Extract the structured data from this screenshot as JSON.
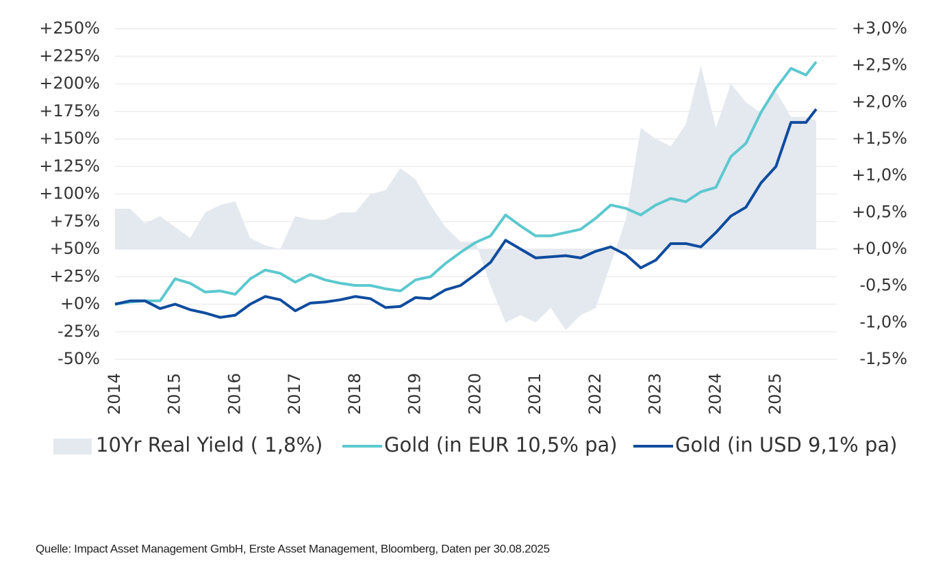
{
  "chart_data": {
    "type": "line",
    "x": [
      2014,
      2014.25,
      2014.5,
      2014.75,
      2015,
      2015.25,
      2015.5,
      2015.75,
      2016,
      2016.25,
      2016.5,
      2016.75,
      2017,
      2017.25,
      2017.5,
      2017.75,
      2018,
      2018.25,
      2018.5,
      2018.75,
      2019,
      2019.25,
      2019.5,
      2019.75,
      2020,
      2020.25,
      2020.5,
      2020.75,
      2021,
      2021.25,
      2021.5,
      2021.75,
      2022,
      2022.25,
      2022.5,
      2022.75,
      2023,
      2023.25,
      2023.5,
      2023.75,
      2024,
      2024.25,
      2024.5,
      2024.75,
      2025,
      2025.25,
      2025.5,
      2025.67
    ],
    "series": [
      {
        "name": "10Yr Real Yield ( 1,8%)",
        "color": "#e4e8ef",
        "style": "area",
        "axis": "y2",
        "values": [
          0.55,
          0.55,
          0.35,
          0.45,
          0.3,
          0.15,
          0.5,
          0.6,
          0.65,
          0.15,
          0.05,
          0.0,
          0.45,
          0.4,
          0.4,
          0.5,
          0.5,
          0.75,
          0.8,
          1.1,
          0.95,
          0.6,
          0.3,
          0.1,
          0.1,
          -0.5,
          -1.0,
          -0.9,
          -1.0,
          -0.8,
          -1.1,
          -0.9,
          -0.8,
          -0.2,
          0.4,
          1.65,
          1.5,
          1.4,
          1.7,
          2.5,
          1.65,
          2.25,
          2.0,
          1.85,
          2.15,
          1.8,
          1.8,
          1.75
        ]
      },
      {
        "name": "Gold (in EUR 10,5% pa)",
        "color": "#5cc8cf",
        "style": "line",
        "values": [
          0,
          2,
          3,
          3,
          23,
          19,
          11,
          12,
          9,
          23,
          31,
          28,
          20,
          27,
          22,
          19,
          17,
          17,
          14,
          12,
          22,
          25,
          37,
          47,
          56,
          62,
          81,
          71,
          62,
          62,
          65,
          68,
          78,
          90,
          87,
          81,
          90,
          96,
          93,
          102,
          106,
          134,
          146,
          174,
          196,
          214,
          208,
          220
        ]
      },
      {
        "name": "Gold (in USD 9,1% pa)",
        "color": "#0f4c9e",
        "style": "line",
        "values": [
          0,
          3,
          3,
          -4,
          0,
          -5,
          -8,
          -12,
          -10,
          0,
          7,
          4,
          -6,
          1,
          2,
          4,
          7,
          5,
          -3,
          -2,
          6,
          5,
          13,
          17,
          27,
          38,
          58,
          50,
          42,
          43,
          44,
          42,
          48,
          52,
          45,
          33,
          40,
          55,
          55,
          52,
          65,
          80,
          88,
          110,
          125,
          165,
          165,
          177
        ]
      }
    ],
    "xlim": [
      2014,
      2025.67
    ],
    "xticks": [
      2014,
      2015,
      2016,
      2017,
      2018,
      2019,
      2020,
      2021,
      2022,
      2023,
      2024,
      2025
    ],
    "ylim": [
      -50,
      250
    ],
    "yticks": [
      {
        "value": 250,
        "label": "+250%"
      },
      {
        "value": 225,
        "label": "+225%"
      },
      {
        "value": 200,
        "label": "+200%"
      },
      {
        "value": 175,
        "label": "+175%"
      },
      {
        "value": 150,
        "label": "+150%"
      },
      {
        "value": 125,
        "label": "+125%"
      },
      {
        "value": 100,
        "label": "+100%"
      },
      {
        "value": 75,
        "label": "+75%"
      },
      {
        "value": 50,
        "label": "+50%"
      },
      {
        "value": 25,
        "label": "+25%"
      },
      {
        "value": 0,
        "label": "+0%"
      },
      {
        "value": -25,
        "label": "-25%"
      },
      {
        "value": -50,
        "label": "-50%"
      }
    ],
    "y2lim": [
      -1.5,
      3.0
    ],
    "y2ticks": [
      {
        "value": 3.0,
        "label": "+3,0%"
      },
      {
        "value": 2.5,
        "label": "+2,5%"
      },
      {
        "value": 2.0,
        "label": "+2,0%"
      },
      {
        "value": 1.5,
        "label": "+1,5%"
      },
      {
        "value": 1.0,
        "label": "+1,0%"
      },
      {
        "value": 0.5,
        "label": "+0,5%"
      },
      {
        "value": 0.0,
        "label": "+0,0%"
      },
      {
        "value": -0.5,
        "label": "-0,5%"
      },
      {
        "value": -1.0,
        "label": "-1,0%"
      },
      {
        "value": -1.5,
        "label": "-1,5%"
      }
    ],
    "grid": true,
    "legend": "bottom",
    "source": "Quelle: Impact Asset Management GmbH, Erste Asset Management, Bloomberg, Daten per 30.08.2025"
  }
}
